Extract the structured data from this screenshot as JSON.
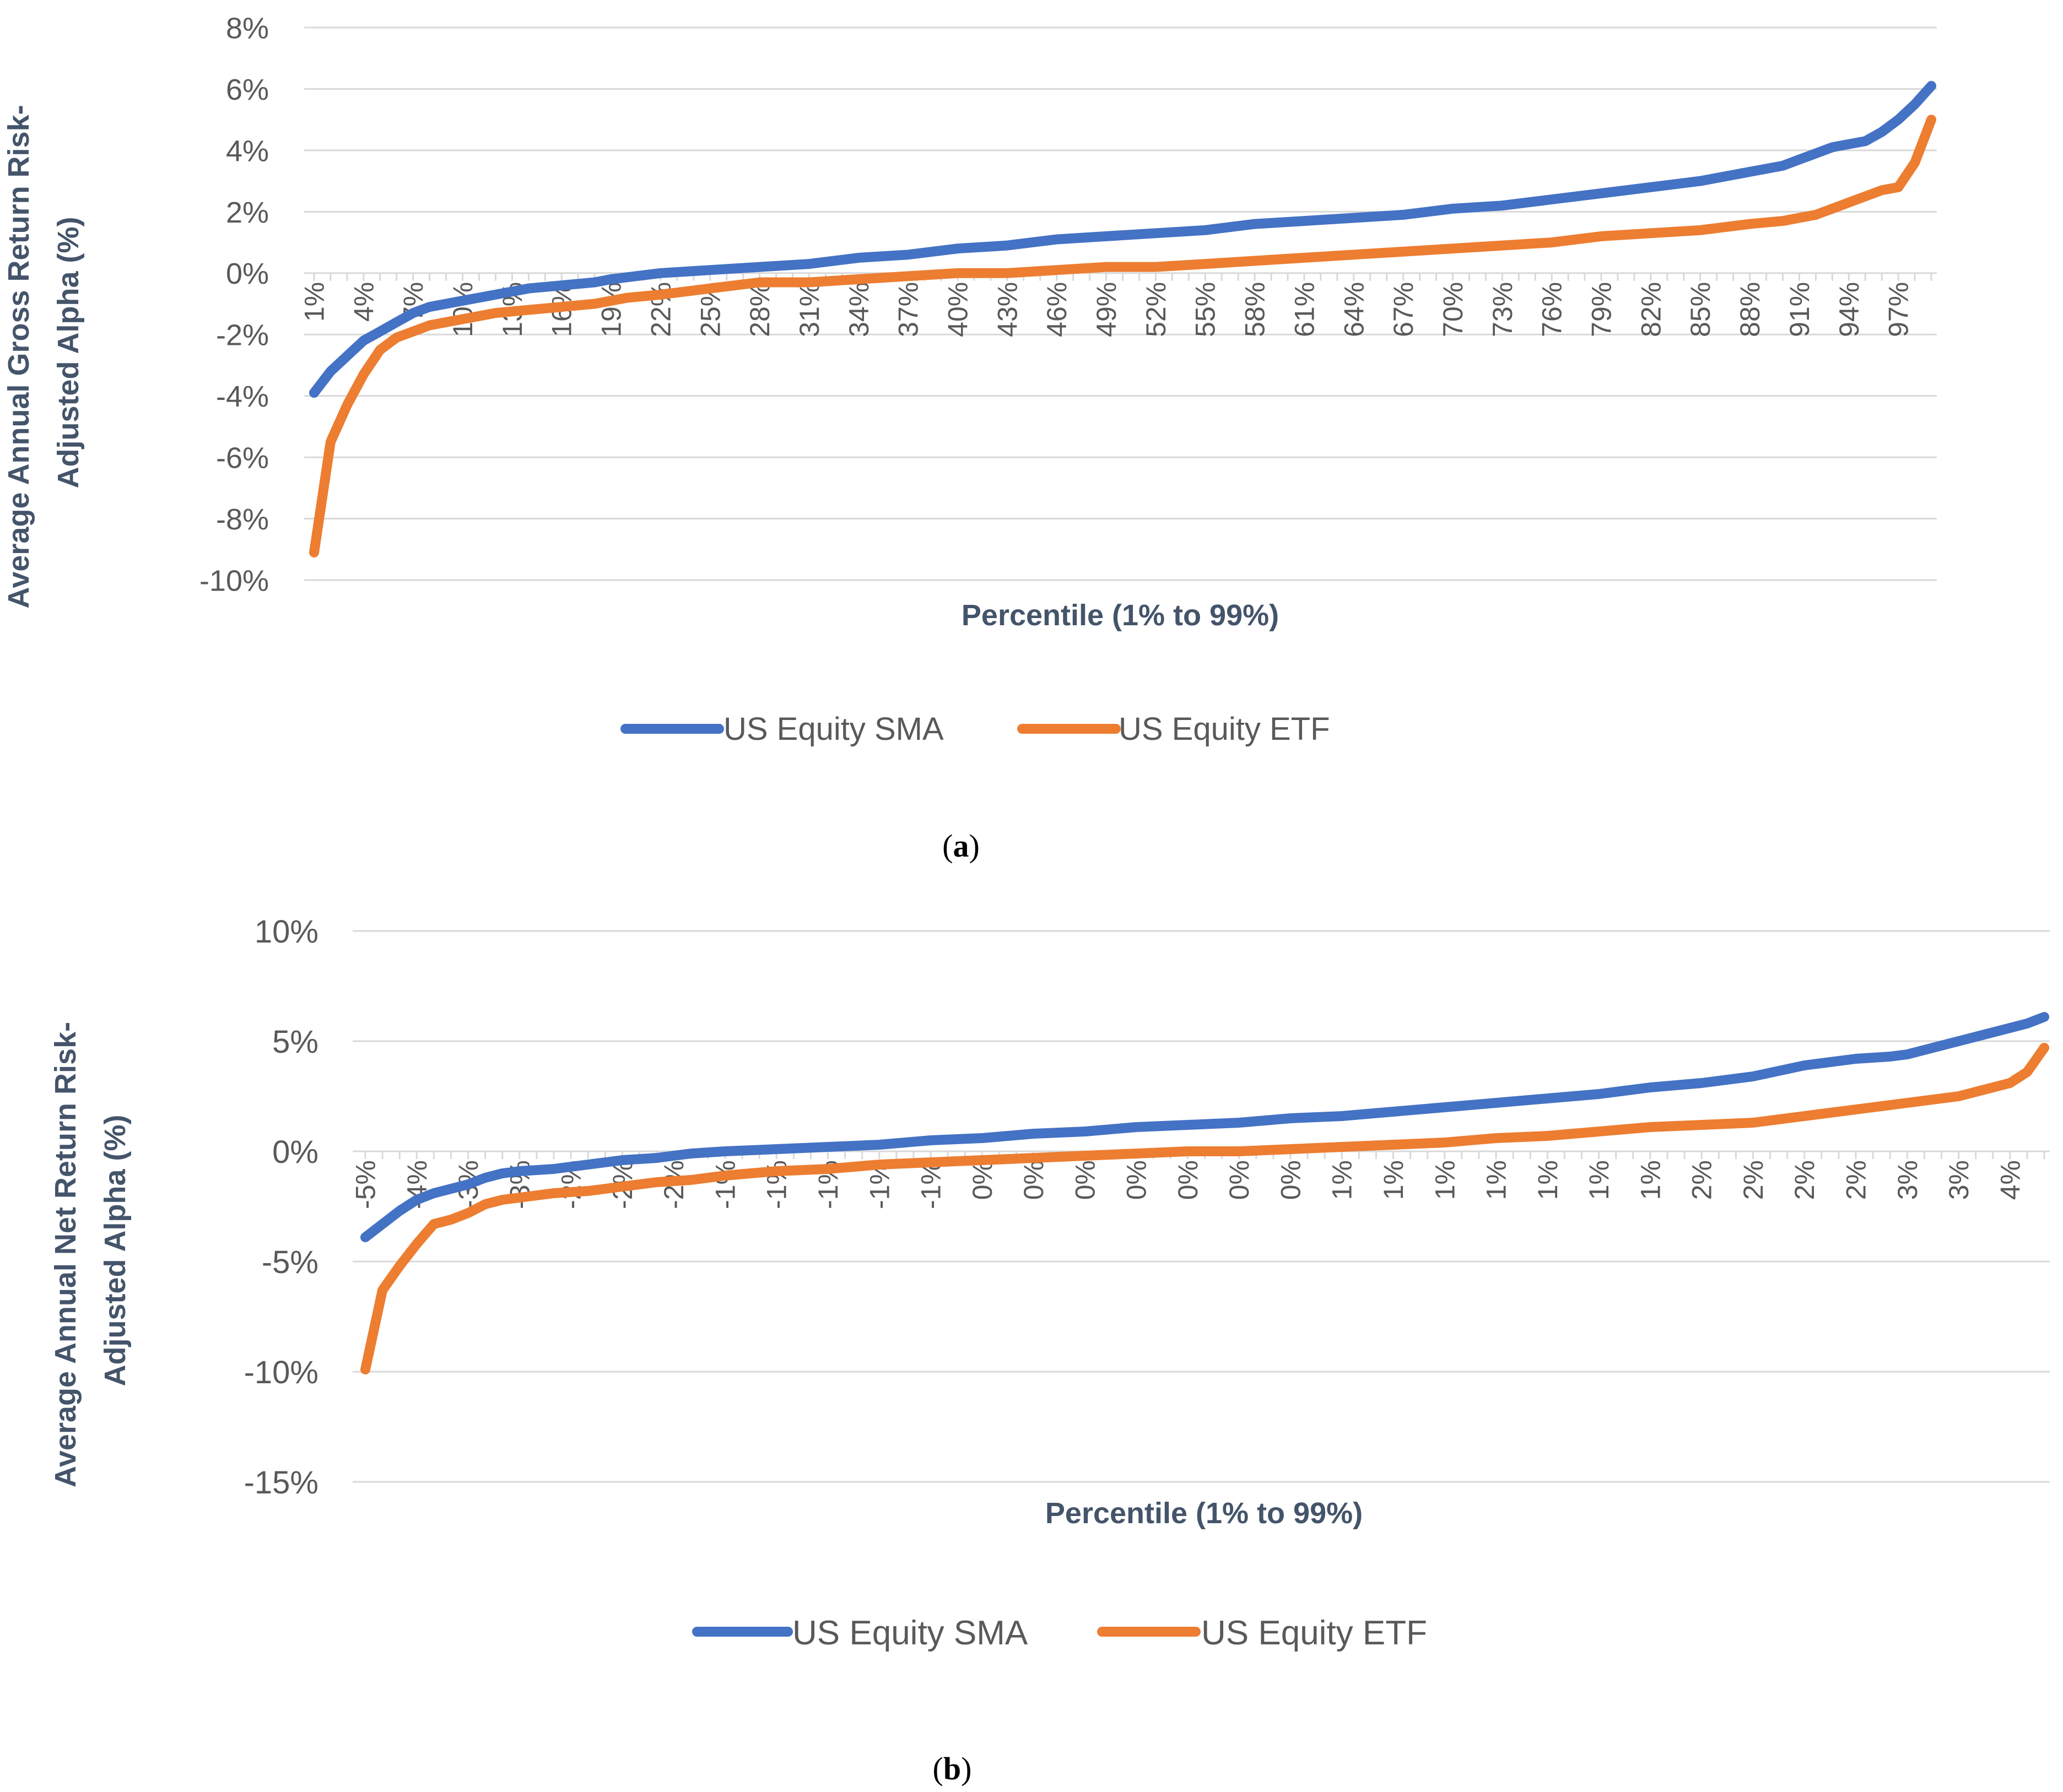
{
  "colors": {
    "sma": "#4472C4",
    "etf": "#ED7D31",
    "grid": "#D9D9D9",
    "text": "#595959",
    "axis_title": "#44546A"
  },
  "chart_data": [
    {
      "type": "line",
      "panel": "a",
      "caption_label": "a",
      "caption": "(a)",
      "ylabel": "Average Annual Gross Return Risk-Adjusted Alpha (%)",
      "ylabel_lines": [
        "Average Annual Gross Return Risk-",
        "Adjusted Alpha (%)"
      ],
      "xlabel": "Percentile (1% to 99%)",
      "yticks": [
        "8%",
        "6%",
        "4%",
        "2%",
        "0%",
        "-2%",
        "-4%",
        "-6%",
        "-8%",
        "-10%"
      ],
      "ylim": [
        -10,
        8
      ],
      "xticks": [
        "1%",
        "4%",
        "7%",
        "10%",
        "13%",
        "16%",
        "19%",
        "22%",
        "25%",
        "28%",
        "31%",
        "34%",
        "37%",
        "40%",
        "43%",
        "46%",
        "49%",
        "52%",
        "55%",
        "58%",
        "61%",
        "64%",
        "67%",
        "70%",
        "73%",
        "76%",
        "79%",
        "82%",
        "85%",
        "88%",
        "91%",
        "94%",
        "97%"
      ],
      "xlim": [
        1,
        99
      ],
      "legend": [
        "US Equity SMA",
        "US Equity ETF"
      ],
      "series": [
        {
          "name": "US Equity SMA",
          "x": [
            1,
            2,
            3,
            4,
            5,
            6,
            7,
            8,
            9,
            10,
            12,
            14,
            16,
            18,
            19,
            22,
            25,
            28,
            31,
            34,
            37,
            40,
            43,
            46,
            49,
            52,
            55,
            58,
            61,
            64,
            67,
            70,
            73,
            76,
            79,
            82,
            85,
            88,
            90,
            91,
            92,
            93,
            94,
            95,
            96,
            97,
            98,
            99
          ],
          "values": [
            -3.9,
            -3.2,
            -2.7,
            -2.2,
            -1.9,
            -1.6,
            -1.3,
            -1.1,
            -1.0,
            -0.9,
            -0.7,
            -0.5,
            -0.4,
            -0.3,
            -0.2,
            0.0,
            0.1,
            0.2,
            0.3,
            0.5,
            0.6,
            0.8,
            0.9,
            1.1,
            1.2,
            1.3,
            1.4,
            1.6,
            1.7,
            1.8,
            1.9,
            2.1,
            2.2,
            2.4,
            2.6,
            2.8,
            3.0,
            3.3,
            3.5,
            3.7,
            3.9,
            4.1,
            4.2,
            4.3,
            4.6,
            5.0,
            5.5,
            6.1
          ]
        },
        {
          "name": "US Equity ETF",
          "x": [
            1,
            2,
            3,
            4,
            5,
            6,
            7,
            8,
            9,
            10,
            12,
            14,
            16,
            18,
            20,
            22,
            25,
            28,
            31,
            34,
            37,
            40,
            43,
            46,
            49,
            52,
            55,
            58,
            61,
            64,
            67,
            70,
            73,
            76,
            79,
            82,
            85,
            88,
            90,
            91,
            92,
            93,
            94,
            95,
            96,
            97,
            98,
            99
          ],
          "values": [
            -9.1,
            -5.5,
            -4.3,
            -3.3,
            -2.5,
            -2.1,
            -1.9,
            -1.7,
            -1.6,
            -1.5,
            -1.3,
            -1.2,
            -1.1,
            -1.0,
            -0.8,
            -0.7,
            -0.5,
            -0.3,
            -0.3,
            -0.2,
            -0.1,
            0.0,
            0.0,
            0.1,
            0.2,
            0.2,
            0.3,
            0.4,
            0.5,
            0.6,
            0.7,
            0.8,
            0.9,
            1.0,
            1.2,
            1.3,
            1.4,
            1.6,
            1.7,
            1.8,
            1.9,
            2.1,
            2.3,
            2.5,
            2.7,
            2.8,
            3.6,
            5.0
          ]
        }
      ]
    },
    {
      "type": "line",
      "panel": "b",
      "caption_label": "b",
      "caption": "(b)",
      "ylabel": "Average Annual Net Return Risk-Adjusted Alpha (%)",
      "ylabel_lines": [
        "Average Annual Net Return Risk-",
        "Adjusted Alpha (%)"
      ],
      "xlabel": "Percentile (1% to 99%)",
      "yticks": [
        "10%",
        "5%",
        "0%",
        "-5%",
        "-10%",
        "-15%"
      ],
      "ylim": [
        -15,
        10
      ],
      "xticks": [
        "-5%",
        "-4%",
        "-3%",
        "-3%",
        "-2%",
        "-2%",
        "-2%",
        "-1%",
        "-1%",
        "-1%",
        "-1%",
        "-1%",
        "0%",
        "0%",
        "0%",
        "0%",
        "0%",
        "0%",
        "0%",
        "1%",
        "1%",
        "1%",
        "1%",
        "1%",
        "1%",
        "1%",
        "2%",
        "2%",
        "2%",
        "2%",
        "3%",
        "3%",
        "4%"
      ],
      "xlim": [
        1,
        99
      ],
      "legend": [
        "US Equity SMA",
        "US Equity ETF"
      ],
      "series": [
        {
          "name": "US Equity SMA",
          "x": [
            1,
            2,
            3,
            4,
            5,
            6,
            7,
            8,
            9,
            10,
            12,
            14,
            16,
            18,
            20,
            22,
            25,
            28,
            31,
            34,
            37,
            40,
            43,
            46,
            49,
            52,
            55,
            58,
            61,
            64,
            67,
            70,
            73,
            76,
            79,
            82,
            85,
            88,
            90,
            91,
            92,
            93,
            94,
            95,
            96,
            97,
            98,
            99
          ],
          "values": [
            -3.9,
            -3.3,
            -2.7,
            -2.2,
            -1.9,
            -1.7,
            -1.5,
            -1.2,
            -1.0,
            -0.9,
            -0.8,
            -0.6,
            -0.4,
            -0.3,
            -0.1,
            0.0,
            0.1,
            0.2,
            0.3,
            0.5,
            0.6,
            0.8,
            0.9,
            1.1,
            1.2,
            1.3,
            1.5,
            1.6,
            1.8,
            2.0,
            2.2,
            2.4,
            2.6,
            2.9,
            3.1,
            3.4,
            3.9,
            4.2,
            4.3,
            4.4,
            4.6,
            4.8,
            5.0,
            5.2,
            5.4,
            5.6,
            5.8,
            6.1
          ]
        },
        {
          "name": "US Equity ETF",
          "x": [
            1,
            2,
            3,
            4,
            5,
            6,
            7,
            8,
            9,
            10,
            12,
            14,
            16,
            18,
            20,
            22,
            25,
            28,
            31,
            34,
            37,
            40,
            43,
            46,
            49,
            52,
            55,
            58,
            61,
            64,
            67,
            70,
            73,
            76,
            79,
            82,
            85,
            88,
            90,
            91,
            92,
            93,
            94,
            95,
            96,
            97,
            98,
            99
          ],
          "values": [
            -9.9,
            -6.3,
            -5.2,
            -4.2,
            -3.3,
            -3.1,
            -2.8,
            -2.4,
            -2.2,
            -2.1,
            -1.9,
            -1.8,
            -1.6,
            -1.4,
            -1.3,
            -1.1,
            -0.9,
            -0.8,
            -0.6,
            -0.5,
            -0.4,
            -0.3,
            -0.2,
            -0.1,
            0.0,
            0.0,
            0.1,
            0.2,
            0.3,
            0.4,
            0.6,
            0.7,
            0.9,
            1.1,
            1.2,
            1.3,
            1.6,
            1.9,
            2.1,
            2.2,
            2.3,
            2.4,
            2.5,
            2.7,
            2.9,
            3.1,
            3.6,
            4.7
          ]
        }
      ]
    }
  ]
}
